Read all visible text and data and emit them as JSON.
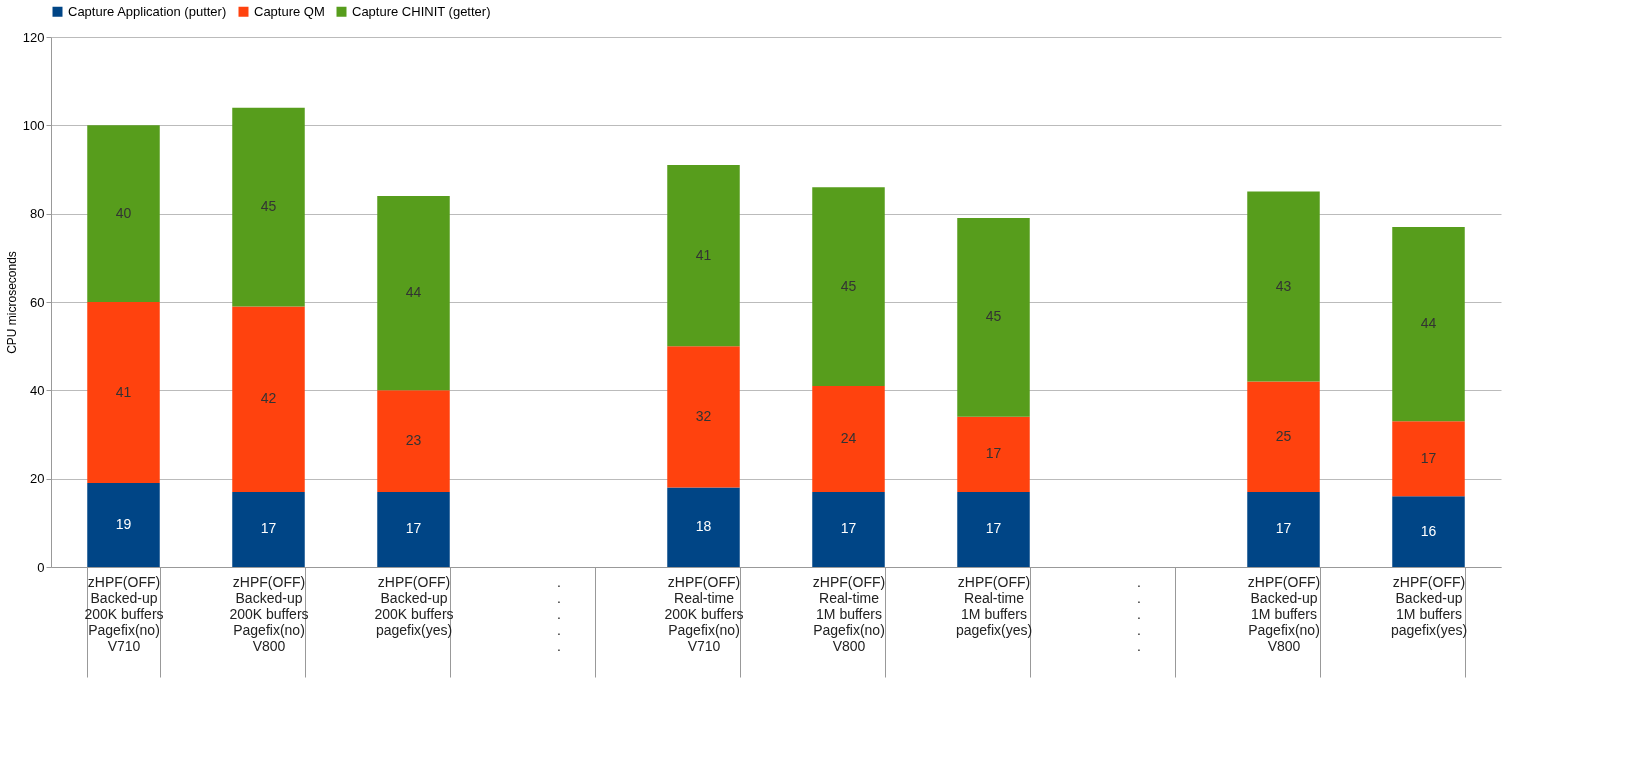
{
  "chart_data": {
    "type": "bar",
    "stacked": true,
    "ylabel": "CPU microseconds",
    "categories": [
      "zHPF(OFF)\nBacked-up\n200K buffers\nPagefix(no)\nV710",
      "zHPF(OFF)\nBacked-up\n200K buffers\nPagefix(no)\nV800",
      "zHPF(OFF)\nBacked-up\n200K buffers\npagefix(yes)",
      ".\n.\n.\n.\n.",
      "zHPF(OFF)\nReal-time\n200K buffers\nPagefix(no)\nV710",
      "zHPF(OFF)\nReal-time\n1M buffers\nPagefix(no)\nV800",
      "zHPF(OFF)\nReal-time\n1M buffers\npagefix(yes)",
      ".\n.\n.\n.\n.",
      "zHPF(OFF)\nBacked-up\n1M buffers\nPagefix(no)\nV800",
      "zHPF(OFF)\nBacked-up\n1M buffers\npagefix(yes)"
    ],
    "series": [
      {
        "name": "Capture Application (putter)",
        "color": "#004586",
        "values": [
          19,
          17,
          17,
          null,
          18,
          17,
          17,
          null,
          17,
          16
        ]
      },
      {
        "name": "Capture QM",
        "color": "#ff420e",
        "values": [
          41,
          42,
          23,
          null,
          32,
          24,
          17,
          null,
          25,
          17
        ]
      },
      {
        "name": "Capture CHINIT (getter)",
        "color": "#579d1c",
        "values": [
          40,
          45,
          44,
          null,
          41,
          45,
          45,
          null,
          43,
          44
        ]
      }
    ],
    "ylim": [
      0,
      120
    ],
    "yticks": [
      0,
      20,
      40,
      60,
      80,
      100,
      120
    ],
    "grid": "y",
    "legend": "top",
    "data_labels": true
  }
}
